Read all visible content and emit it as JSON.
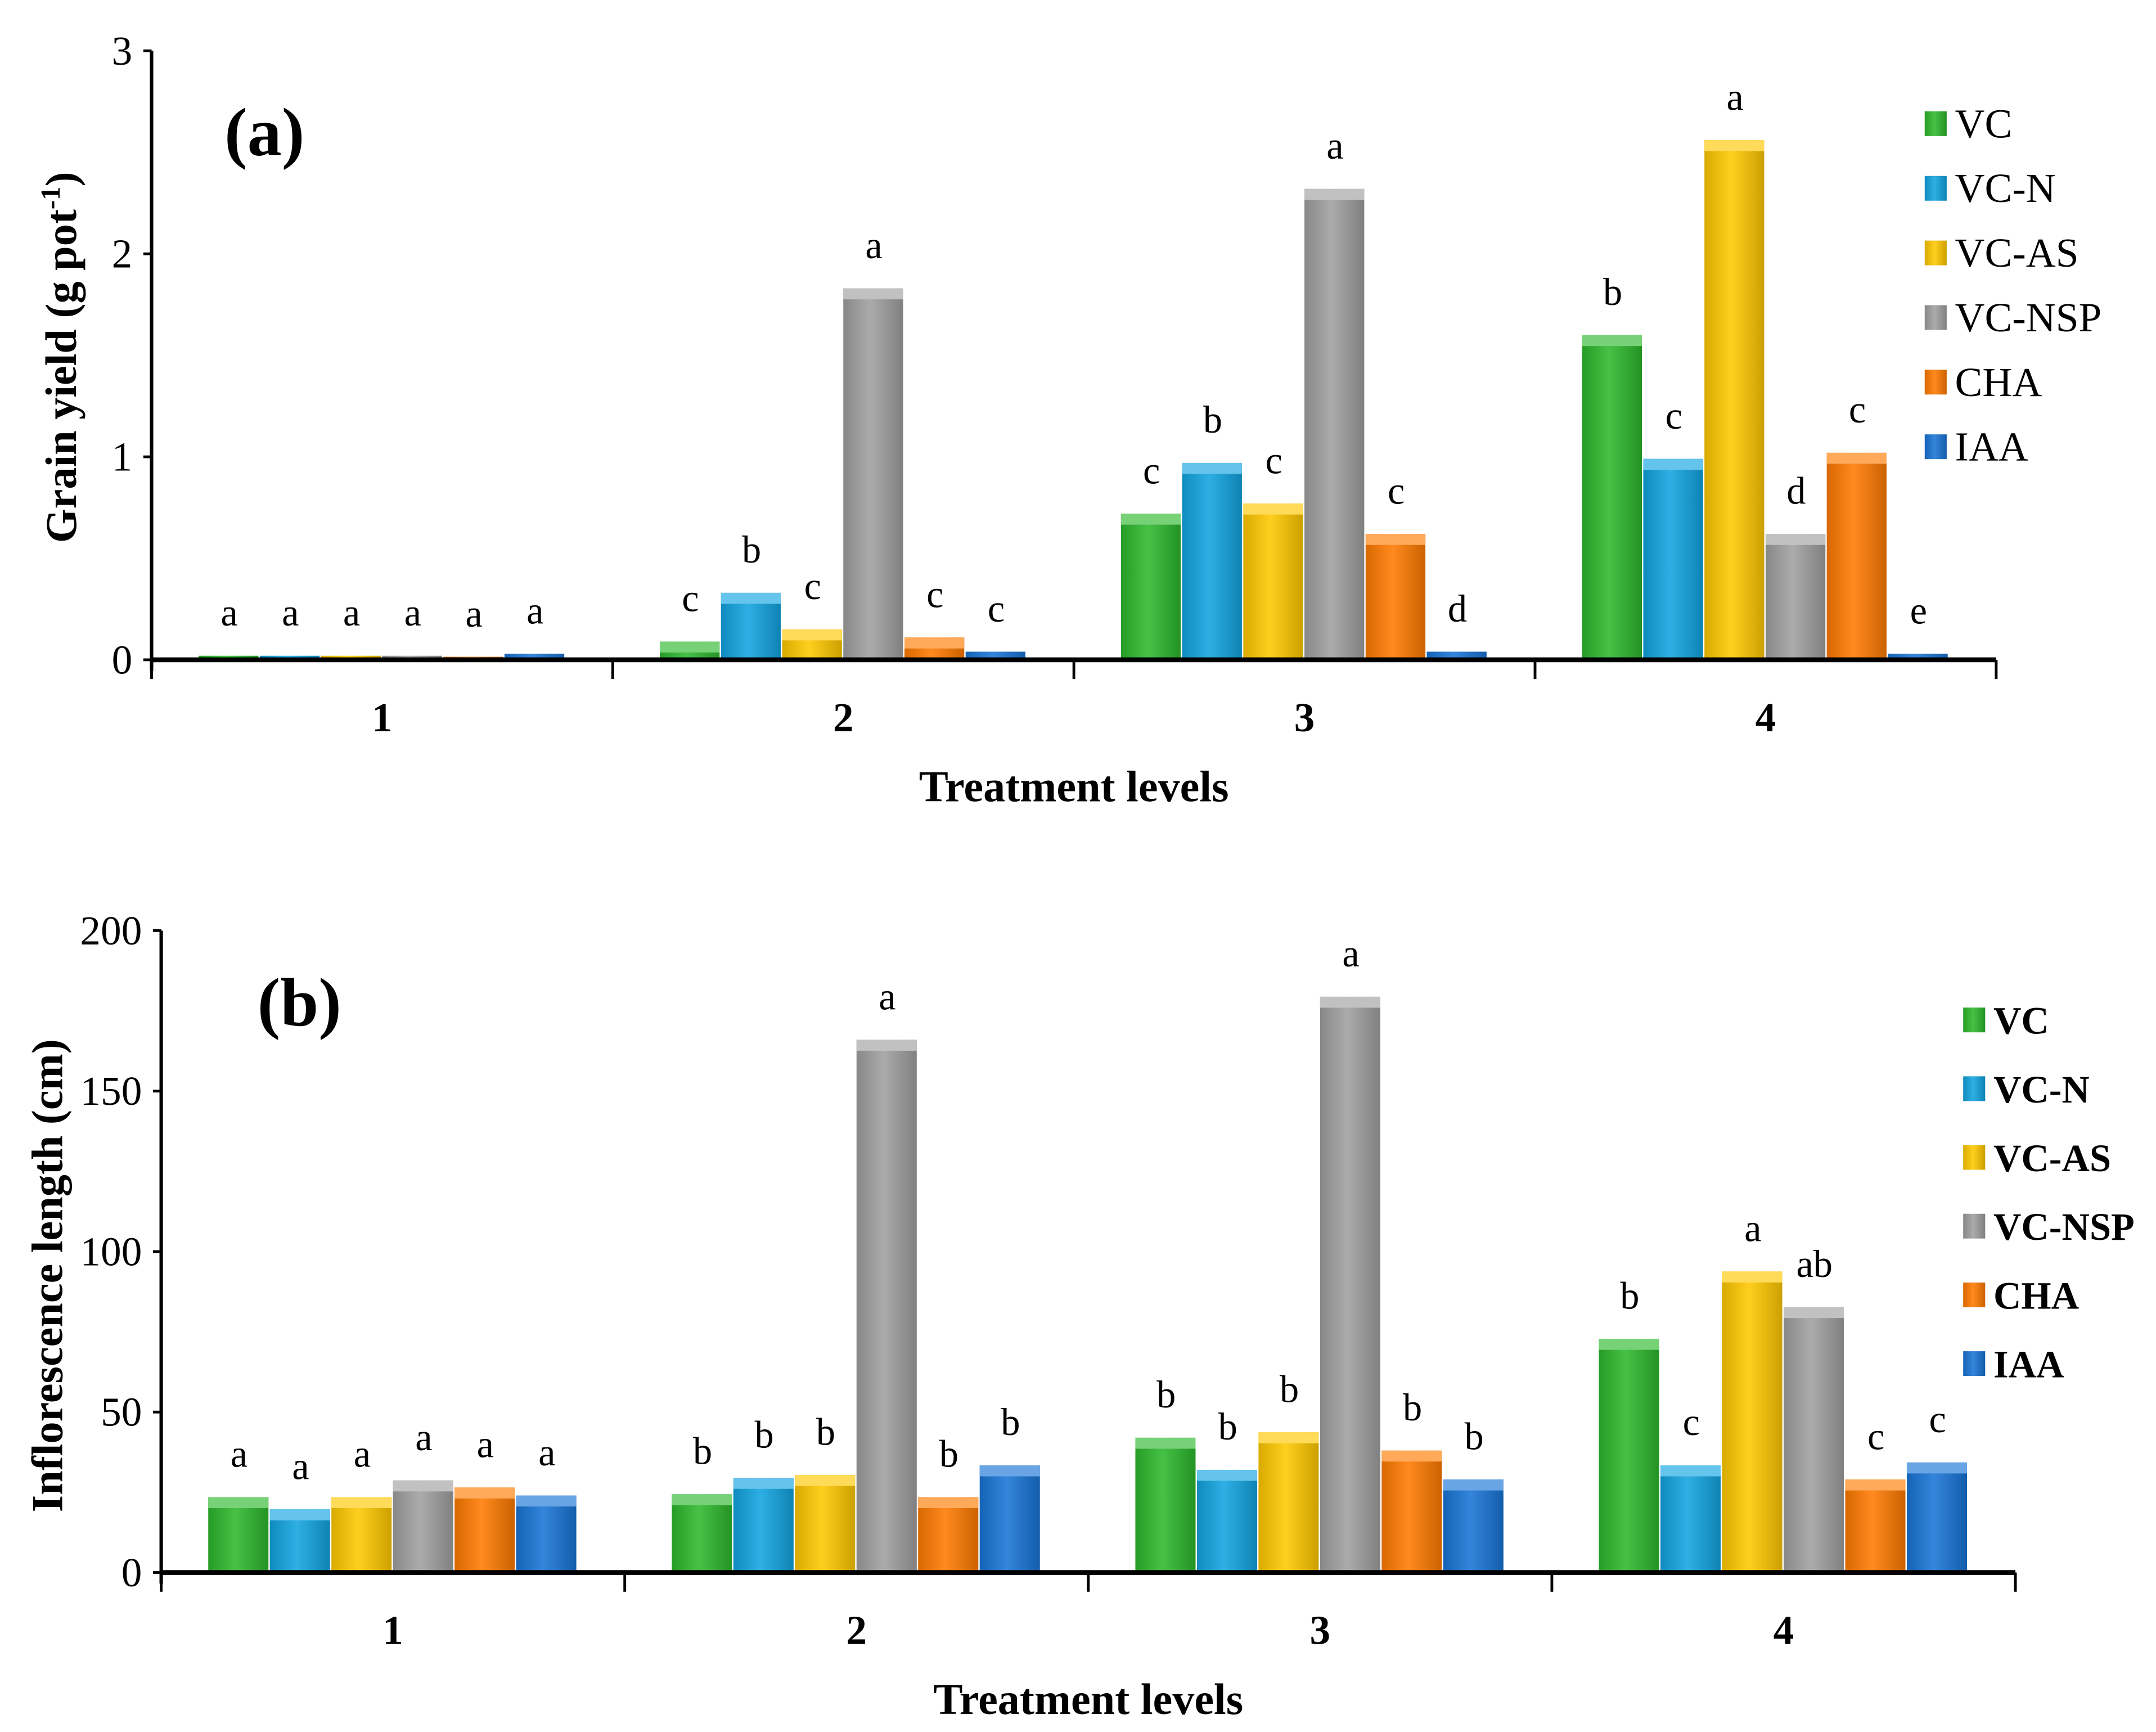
{
  "chart_data": [
    {
      "type": "bar",
      "panel_label": "(a)",
      "xlabel": "Treatment levels",
      "ylabel": "Grain yield (g pot",
      "ylabel_sup": "-1",
      "ylabel_end": ")",
      "ylim": [
        0,
        3
      ],
      "yticks": [
        "0",
        "1",
        "2",
        "3"
      ],
      "categories": [
        "1",
        "2",
        "3",
        "4"
      ],
      "legend_position": "right",
      "series": [
        {
          "name": "VC",
          "color": "#2db82d",
          "values": [
            0.02,
            0.09,
            0.72,
            1.6
          ],
          "letters": [
            "a",
            "c",
            "c",
            "b"
          ]
        },
        {
          "name": "VC-N",
          "color": "#12a4e0",
          "values": [
            0.02,
            0.33,
            0.97,
            0.99
          ],
          "letters": [
            "a",
            "b",
            "b",
            "c"
          ]
        },
        {
          "name": "VC-AS",
          "color": "#ffc800",
          "values": [
            0.02,
            0.15,
            0.77,
            2.56
          ],
          "letters": [
            "a",
            "c",
            "c",
            "a"
          ]
        },
        {
          "name": "VC-NSP",
          "color": "#a0a0a0",
          "values": [
            0.02,
            1.83,
            2.32,
            0.62
          ],
          "letters": [
            "a",
            "a",
            "a",
            "d"
          ]
        },
        {
          "name": "CHA",
          "color": "#ff7a00",
          "values": [
            0.015,
            0.11,
            0.62,
            1.02
          ],
          "letters": [
            "a",
            "c",
            "c",
            "c"
          ]
        },
        {
          "name": "IAA",
          "color": "#1874d6",
          "values": [
            0.03,
            0.04,
            0.04,
            0.03
          ],
          "letters": [
            "a",
            "c",
            "d",
            "e"
          ]
        }
      ]
    },
    {
      "type": "bar",
      "panel_label": "(b)",
      "xlabel": "Treatment levels",
      "ylabel": "Inflorescence length (cm)",
      "ylim": [
        0,
        200
      ],
      "yticks": [
        "0",
        "50",
        "100",
        "150",
        "200"
      ],
      "categories": [
        "1",
        "2",
        "3",
        "4"
      ],
      "legend_position": "right",
      "series": [
        {
          "name": "VC",
          "color": "#2db82d",
          "values": [
            23.5,
            24.4,
            42,
            72.8
          ],
          "letters": [
            "a",
            "b",
            "b",
            "b"
          ]
        },
        {
          "name": "VC-N",
          "color": "#12a4e0",
          "values": [
            19.7,
            29.5,
            32,
            33.4
          ],
          "letters": [
            "a",
            "b",
            "b",
            "c"
          ]
        },
        {
          "name": "VC-AS",
          "color": "#ffc800",
          "values": [
            23.5,
            30.4,
            43.7,
            93.8
          ],
          "letters": [
            "a",
            "b",
            "b",
            "a"
          ]
        },
        {
          "name": "VC-NSP",
          "color": "#a0a0a0",
          "values": [
            28.7,
            166,
            179.4,
            82.7
          ],
          "letters": [
            "a",
            "a",
            "a",
            "ab"
          ]
        },
        {
          "name": "CHA",
          "color": "#ff7a00",
          "values": [
            26.5,
            23.5,
            38,
            29
          ],
          "letters": [
            "a",
            "b",
            "b",
            "c"
          ]
        },
        {
          "name": "IAA",
          "color": "#1874d6",
          "values": [
            24,
            33.4,
            29,
            34.3
          ],
          "letters": [
            "a",
            "b",
            "b",
            "c"
          ]
        }
      ]
    }
  ]
}
